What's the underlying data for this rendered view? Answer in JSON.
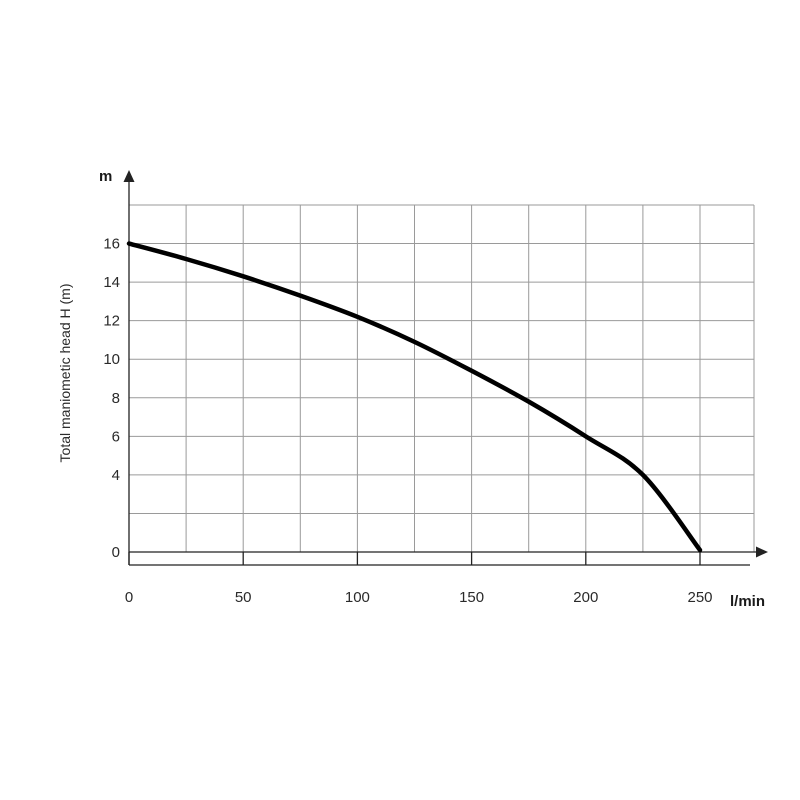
{
  "chart_data": {
    "type": "line",
    "ylabel": "Total maniometic head H (m)",
    "y_unit": "m",
    "x_unit": "l/min",
    "xlim": [
      0,
      250
    ],
    "ylim": [
      0,
      18
    ],
    "x_ticks": [
      0,
      50,
      100,
      150,
      200,
      250
    ],
    "y_ticks": [
      0,
      4,
      6,
      8,
      10,
      12,
      14,
      16
    ],
    "grid": true,
    "series": [
      {
        "x": [
          0,
          25,
          50,
          75,
          100,
          125,
          150,
          175,
          200,
          225,
          250
        ],
        "y": [
          16,
          15.2,
          14.3,
          13.3,
          12.2,
          10.9,
          9.4,
          7.8,
          6.0,
          4.0,
          0.1
        ],
        "color": "#000000"
      }
    ]
  }
}
